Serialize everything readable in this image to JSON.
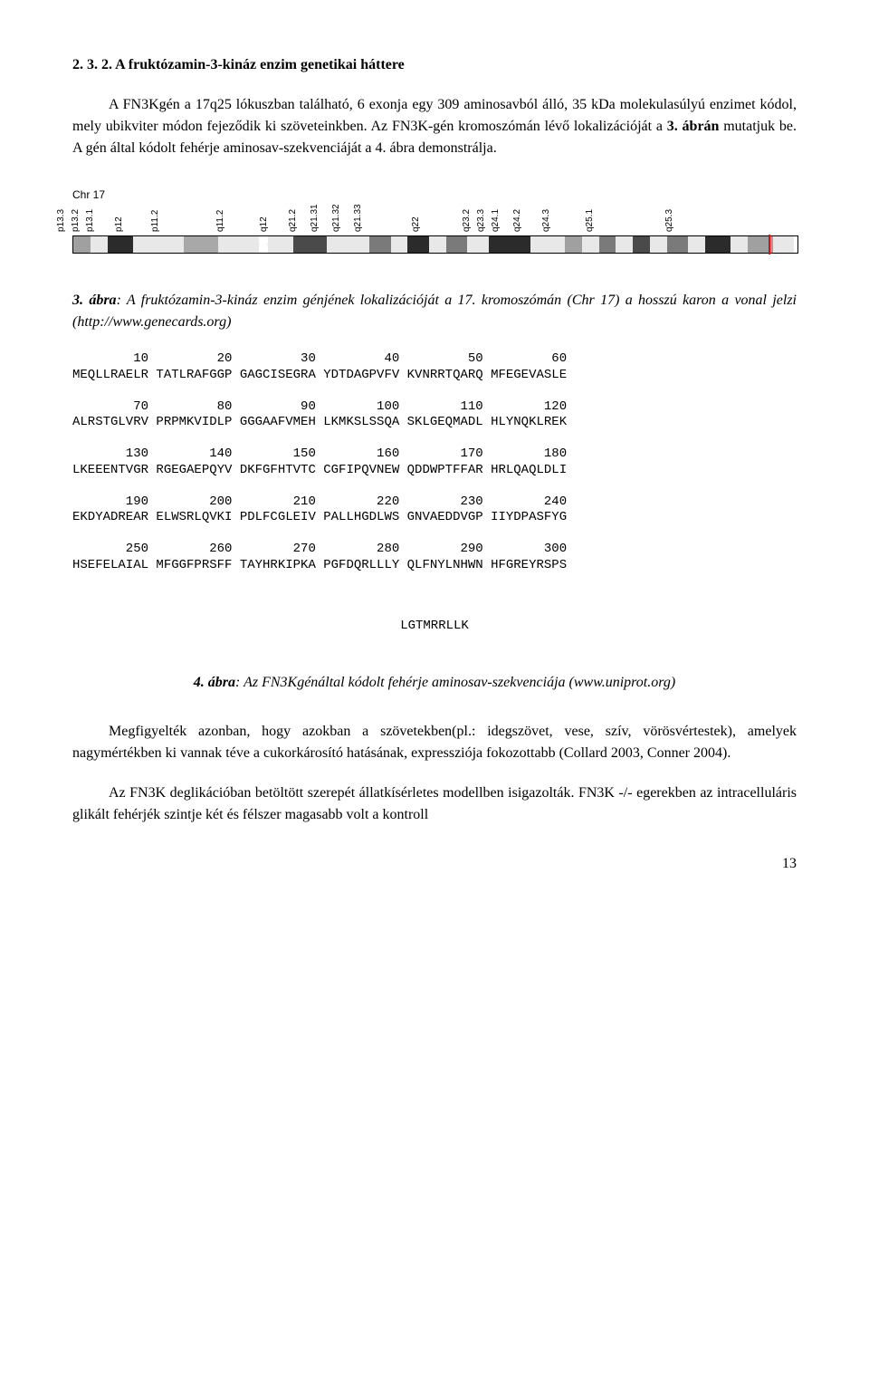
{
  "heading": "2. 3. 2. A fruktózamin-3-kináz enzim genetikai háttere",
  "para1": "A FN3Kgén a 17q25 lókuszban található, 6 exonja egy 309 aminosavból álló, 35 kDa molekulasúlyú enzimet kódol, mely ubikviter módon fejeződik ki szöveteinkben. Az FN3K-gén kromoszómán lévő lokalizációját a ",
  "para1_bold": "3. ábrán",
  "para1_cont": " mutatjuk be. A gén által kódolt fehérje aminosav-szekvenciáját a 4. ábra demonstrálja.",
  "chr_label": "Chr 17",
  "chr_ticks": [
    "p13.3",
    "p13.2",
    "p13.1",
    "p12",
    "p11.2",
    "q11.2",
    "q12",
    "q21.2",
    "q21.31",
    "q21.32",
    "q21.33",
    "q22",
    "q23.2",
    "q23.3",
    "q24.1",
    "q24.2",
    "q24.3",
    "q25.1",
    "q25.3"
  ],
  "chr_bands": [
    {
      "w": 2.0,
      "c": "#a0a0a0"
    },
    {
      "w": 2.0,
      "c": "#e8e8e8"
    },
    {
      "w": 3.0,
      "c": "#2b2b2b"
    },
    {
      "w": 2.0,
      "c": "#e8e8e8"
    },
    {
      "w": 4.0,
      "c": "#e8e8e8"
    },
    {
      "w": 4.0,
      "c": "#a8a8a8"
    },
    {
      "w": 5.0,
      "c": "#e8e8e8"
    },
    {
      "w": 0,
      "c": "centromere"
    },
    {
      "w": 3.0,
      "c": "#e8e8e8"
    },
    {
      "w": 4.0,
      "c": "#4a4a4a"
    },
    {
      "w": 5.0,
      "c": "#e8e8e8"
    },
    {
      "w": 2.5,
      "c": "#7a7a7a"
    },
    {
      "w": 2.0,
      "c": "#e8e8e8"
    },
    {
      "w": 2.5,
      "c": "#2b2b2b"
    },
    {
      "w": 2.0,
      "c": "#e8e8e8"
    },
    {
      "w": 2.5,
      "c": "#7a7a7a"
    },
    {
      "w": 2.5,
      "c": "#e8e8e8"
    },
    {
      "w": 5.0,
      "c": "#2b2b2b"
    },
    {
      "w": 4.0,
      "c": "#e8e8e8"
    },
    {
      "w": 2.0,
      "c": "#a0a0a0"
    },
    {
      "w": 2.0,
      "c": "#e8e8e8"
    },
    {
      "w": 2.0,
      "c": "#7a7a7a"
    },
    {
      "w": 2.0,
      "c": "#e8e8e8"
    },
    {
      "w": 2.0,
      "c": "#4a4a4a"
    },
    {
      "w": 2.0,
      "c": "#e8e8e8"
    },
    {
      "w": 2.5,
      "c": "#7a7a7a"
    },
    {
      "w": 2.0,
      "c": "#e8e8e8"
    },
    {
      "w": 3.0,
      "c": "#2b2b2b"
    },
    {
      "w": 2.0,
      "c": "#e8e8e8"
    },
    {
      "w": 3.0,
      "c": "#a0a0a0"
    },
    {
      "w": 2.5,
      "c": "#e8e8e8"
    }
  ],
  "chr_marker_pct": 96,
  "fig3_lead": "3. ábra",
  "fig3_rest": ": A fruktózamin-3-kináz enzim génjének lokalizációját a 17. kromoszómán (Chr 17) a hosszú karon a vonal jelzi (http://www.genecards.org)",
  "seq": {
    "rows": [
      {
        "nums": [
          "10",
          "20",
          "30",
          "40",
          "50",
          "60"
        ],
        "aa": "MEQLLRAELR TATLRAFGGP GAGCISEGRA YDTDAGPVFV KVNRRTQARQ MFEGEVASLE"
      },
      {
        "nums": [
          "70",
          "80",
          "90",
          "100",
          "110",
          "120"
        ],
        "aa": "ALRSTGLVRV PRPMKVIDLP GGGAAFVMEH LKMKSLSSQA SKLGEQMADL HLYNQKLREK"
      },
      {
        "nums": [
          "130",
          "140",
          "150",
          "160",
          "170",
          "180"
        ],
        "aa": "LKEEENTVGR RGEGAEPQYV DKFGFHTVTC CGFIPQVNEW QDDWPTFFAR HRLQAQLDLI"
      },
      {
        "nums": [
          "190",
          "200",
          "210",
          "220",
          "230",
          "240"
        ],
        "aa": "EKDYADREAR ELWSRLQVKI PDLFCGLEIV PALLHGDLWS GNVAEDDVGP IIYDPASFYG"
      },
      {
        "nums": [
          "250",
          "260",
          "270",
          "280",
          "290",
          "300"
        ],
        "aa": "HSEFELAIAL MFGGFPRSFF TAYHRKIPKA PGFDQRLLLY QLFNYLNHWN HFGREYRSPS"
      }
    ],
    "tail": "LGTMRRLLK"
  },
  "fig4_lead": "4. ábra",
  "fig4_rest": ": Az FN3Kgénáltal kódolt fehérje aminosav-szekvenciája (www.uniprot.org)",
  "para2": "Megfigyelték azonban, hogy azokban a szövetekben(pl.: idegszövet, vese, szív, vörösvértestek), amelyek nagymértékben ki vannak téve a cukorkárosító hatásának, expressziója fokozottabb (Collard 2003, Conner 2004).",
  "para3": "Az FN3K deglikációban betöltött szerepét állatkísérletes modellben isigazolták. FN3K -/- egerekben az intracelluláris glikált fehérjék szintje két és félszer magasabb volt a kontroll",
  "page_number": "13"
}
